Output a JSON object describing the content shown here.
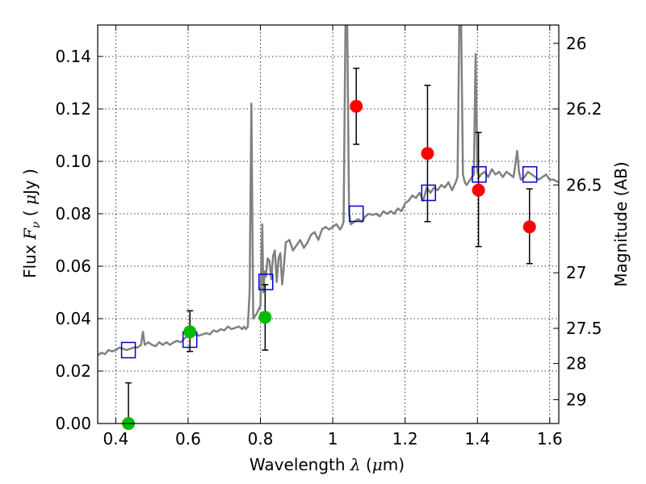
{
  "chart_data": {
    "type": "scatter",
    "xlabel_prefix": "Wavelength ",
    "xlabel_math": "λ",
    "xlabel_suffix": " (",
    "xlabel_mu": "μ",
    "xlabel_unit": "m)",
    "ylabel_prefix": "Flux ",
    "ylabel_F": "F",
    "ylabel_nu": "ν",
    "ylabel_mid": " ( ",
    "ylabel_mu": "μ",
    "ylabel_unit": "Jy )",
    "y2label": "Magnitude (AB)",
    "xlim": [
      0.35,
      1.625
    ],
    "ylim": [
      0.0,
      0.152
    ],
    "grid": true,
    "x_ticks": [
      0.4,
      0.6,
      0.8,
      1.0,
      1.2,
      1.4,
      1.6
    ],
    "x_tick_labels": [
      "0.4",
      "0.6",
      "0.8",
      "1",
      "1.2",
      "1.4",
      "1.6"
    ],
    "y_ticks": [
      0.0,
      0.02,
      0.04,
      0.06,
      0.08,
      0.1,
      0.12,
      0.14
    ],
    "y_tick_labels": [
      "0.00",
      "0.02",
      "0.04",
      "0.06",
      "0.08",
      "0.10",
      "0.12",
      "0.14"
    ],
    "y2_ticks": [
      {
        "label": "26",
        "flux": 0.145
      },
      {
        "label": "26.2",
        "flux": 0.12
      },
      {
        "label": "26.5",
        "flux": 0.091
      },
      {
        "label": "27",
        "flux": 0.0575
      },
      {
        "label": "27.5",
        "flux": 0.0363
      },
      {
        "label": "28",
        "flux": 0.0229
      },
      {
        "label": "29",
        "flux": 0.0091
      }
    ],
    "colors": {
      "model_line": "#808080",
      "model_squares": "#0000cc",
      "detections": "#ff0000",
      "lower_sn": "#00bb00",
      "errorbars": "#000000"
    },
    "model_spectrum": {
      "x": [
        0.35,
        0.36,
        0.37,
        0.38,
        0.39,
        0.4,
        0.41,
        0.42,
        0.43,
        0.44,
        0.45,
        0.46,
        0.47,
        0.475,
        0.48,
        0.49,
        0.5,
        0.51,
        0.52,
        0.53,
        0.54,
        0.55,
        0.56,
        0.57,
        0.58,
        0.59,
        0.6,
        0.61,
        0.62,
        0.63,
        0.64,
        0.65,
        0.66,
        0.67,
        0.68,
        0.69,
        0.7,
        0.71,
        0.72,
        0.73,
        0.74,
        0.75,
        0.755,
        0.76,
        0.765,
        0.77,
        0.775,
        0.78,
        0.79,
        0.8,
        0.805,
        0.808,
        0.812,
        0.815,
        0.82,
        0.825,
        0.83,
        0.835,
        0.84,
        0.845,
        0.85,
        0.855,
        0.86,
        0.865,
        0.87,
        0.88,
        0.89,
        0.9,
        0.91,
        0.92,
        0.93,
        0.94,
        0.95,
        0.96,
        0.97,
        0.98,
        0.99,
        1.0,
        1.01,
        1.02,
        1.025,
        1.03,
        1.035,
        1.04,
        1.045,
        1.05,
        1.06,
        1.07,
        1.08,
        1.09,
        1.1,
        1.11,
        1.12,
        1.13,
        1.14,
        1.15,
        1.16,
        1.17,
        1.18,
        1.19,
        1.2,
        1.21,
        1.22,
        1.23,
        1.24,
        1.25,
        1.26,
        1.27,
        1.28,
        1.29,
        1.3,
        1.31,
        1.32,
        1.33,
        1.34,
        1.345,
        1.35,
        1.355,
        1.36,
        1.365,
        1.37,
        1.38,
        1.39,
        1.395,
        1.4,
        1.405,
        1.41,
        1.42,
        1.43,
        1.44,
        1.45,
        1.46,
        1.47,
        1.48,
        1.49,
        1.5,
        1.51,
        1.515,
        1.52,
        1.53,
        1.54,
        1.55,
        1.56,
        1.57,
        1.58,
        1.59,
        1.6,
        1.61,
        1.625
      ],
      "y": [
        0.026,
        0.027,
        0.0265,
        0.028,
        0.0275,
        0.028,
        0.029,
        0.0285,
        0.028,
        0.0285,
        0.029,
        0.029,
        0.03,
        0.035,
        0.03,
        0.031,
        0.03,
        0.0295,
        0.031,
        0.03,
        0.031,
        0.03,
        0.031,
        0.0315,
        0.031,
        0.0325,
        0.0335,
        0.033,
        0.034,
        0.0335,
        0.034,
        0.0345,
        0.034,
        0.0355,
        0.035,
        0.036,
        0.0355,
        0.037,
        0.036,
        0.0365,
        0.037,
        0.036,
        0.037,
        0.036,
        0.037,
        0.05,
        0.122,
        0.04,
        0.042,
        0.045,
        0.076,
        0.05,
        0.058,
        0.056,
        0.063,
        0.062,
        0.055,
        0.064,
        0.066,
        0.054,
        0.063,
        0.065,
        0.053,
        0.06,
        0.069,
        0.07,
        0.066,
        0.068,
        0.07,
        0.067,
        0.069,
        0.072,
        0.073,
        0.07,
        0.074,
        0.075,
        0.074,
        0.075,
        0.076,
        0.074,
        0.075,
        0.077,
        0.152,
        0.152,
        0.08,
        0.076,
        0.077,
        0.078,
        0.077,
        0.079,
        0.08,
        0.0795,
        0.08,
        0.079,
        0.081,
        0.08,
        0.081,
        0.08,
        0.082,
        0.081,
        0.084,
        0.085,
        0.087,
        0.086,
        0.088,
        0.085,
        0.09,
        0.088,
        0.09,
        0.089,
        0.091,
        0.09,
        0.092,
        0.089,
        0.092,
        0.094,
        0.152,
        0.152,
        0.095,
        0.092,
        0.091,
        0.093,
        0.095,
        0.141,
        0.096,
        0.094,
        0.095,
        0.096,
        0.094,
        0.097,
        0.095,
        0.096,
        0.094,
        0.096,
        0.095,
        0.094,
        0.104,
        0.096,
        0.093,
        0.094,
        0.096,
        0.095,
        0.094,
        0.093,
        0.094,
        0.095,
        0.093,
        0.093,
        0.092
      ]
    },
    "model_squares": {
      "x": [
        0.435,
        0.605,
        0.815,
        1.065,
        1.265,
        1.405,
        1.545
      ],
      "y": [
        0.028,
        0.032,
        0.054,
        0.08,
        0.088,
        0.095,
        0.095
      ]
    },
    "detections": {
      "x": [
        1.065,
        1.262,
        1.403,
        1.544
      ],
      "y": [
        0.121,
        0.103,
        0.089,
        0.075
      ],
      "yerr_low": [
        0.1065,
        0.077,
        0.0675,
        0.061
      ],
      "yerr_high": [
        0.1355,
        0.129,
        0.111,
        0.0895
      ]
    },
    "lower_sn": {
      "x": [
        0.435,
        0.605,
        0.813
      ],
      "y": [
        0.0,
        0.035,
        0.0405
      ],
      "yerr_low": [
        0.0,
        0.0275,
        0.028
      ],
      "yerr_high": [
        0.0155,
        0.043,
        0.053
      ]
    }
  }
}
